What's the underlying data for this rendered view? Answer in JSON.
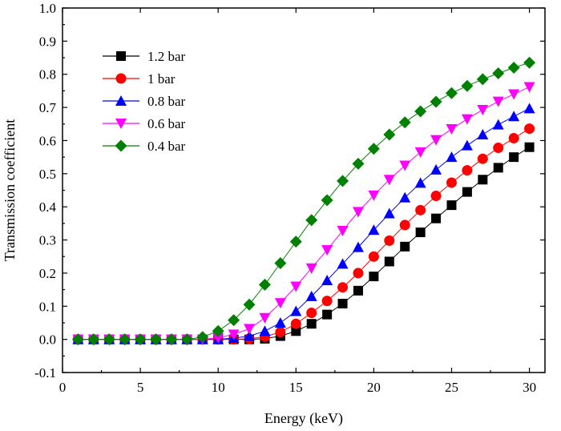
{
  "chart_data": {
    "type": "line",
    "title": "",
    "xlabel": "Energy (keV)",
    "ylabel": "Transmission coefficient",
    "xlim": [
      0,
      31
    ],
    "ylim": [
      -0.1,
      1.0
    ],
    "xticks": [
      0,
      5,
      10,
      15,
      20,
      25,
      30
    ],
    "xtick_labels": [
      "0",
      "5",
      "10",
      "15",
      "20",
      "25",
      "30"
    ],
    "yticks": [
      -0.1,
      0.0,
      0.1,
      0.2,
      0.3,
      0.4,
      0.5,
      0.6,
      0.7,
      0.8,
      0.9,
      1.0
    ],
    "ytick_labels": [
      "-0.1",
      "0.0",
      "0.1",
      "0.2",
      "0.3",
      "0.4",
      "0.5",
      "0.6",
      "0.7",
      "0.8",
      "0.9",
      "1.0"
    ],
    "grid": false,
    "legend_position": "top-left",
    "x": [
      1,
      2,
      3,
      4,
      5,
      6,
      7,
      8,
      9,
      10,
      11,
      12,
      13,
      14,
      15,
      16,
      17,
      18,
      19,
      20,
      21,
      22,
      23,
      24,
      25,
      26,
      27,
      28,
      29,
      30
    ],
    "series": [
      {
        "name": "1.2 bar",
        "color": "#000000",
        "marker": "square",
        "values": [
          0,
          0,
          0,
          0,
          0,
          0,
          0,
          0,
          0,
          0,
          0,
          0,
          0.002,
          0.01,
          0.025,
          0.047,
          0.075,
          0.108,
          0.147,
          0.19,
          0.235,
          0.28,
          0.323,
          0.365,
          0.405,
          0.445,
          0.482,
          0.518,
          0.55,
          0.58
        ]
      },
      {
        "name": "1 bar",
        "color": "#ff0000",
        "marker": "circle",
        "values": [
          0,
          0,
          0,
          0,
          0,
          0,
          0,
          0,
          0,
          0,
          0,
          0.002,
          0.008,
          0.022,
          0.047,
          0.08,
          0.116,
          0.157,
          0.2,
          0.25,
          0.298,
          0.345,
          0.39,
          0.433,
          0.473,
          0.51,
          0.545,
          0.578,
          0.607,
          0.636
        ]
      },
      {
        "name": "0.8 bar",
        "color": "#0000ff",
        "marker": "triangle-up",
        "values": [
          0,
          0,
          0,
          0,
          0,
          0,
          0,
          0,
          0,
          0,
          0.004,
          0.01,
          0.025,
          0.05,
          0.085,
          0.13,
          0.178,
          0.228,
          0.278,
          0.33,
          0.38,
          0.428,
          0.472,
          0.512,
          0.55,
          0.585,
          0.618,
          0.648,
          0.673,
          0.697
        ]
      },
      {
        "name": "0.6 bar",
        "color": "#ff00ff",
        "marker": "triangle-down",
        "values": [
          0,
          0,
          0,
          0,
          0,
          0,
          0,
          0,
          0,
          0.005,
          0.015,
          0.032,
          0.065,
          0.11,
          0.16,
          0.215,
          0.27,
          0.328,
          0.385,
          0.435,
          0.482,
          0.525,
          0.565,
          0.602,
          0.635,
          0.665,
          0.693,
          0.718,
          0.74,
          0.762
        ]
      },
      {
        "name": "0.4 bar",
        "color": "#008000",
        "marker": "diamond",
        "values": [
          0,
          0,
          0,
          0,
          0,
          0,
          0,
          0,
          0.007,
          0.025,
          0.058,
          0.105,
          0.165,
          0.23,
          0.295,
          0.36,
          0.42,
          0.478,
          0.53,
          0.575,
          0.618,
          0.655,
          0.688,
          0.717,
          0.743,
          0.765,
          0.785,
          0.803,
          0.82,
          0.835
        ]
      }
    ]
  }
}
